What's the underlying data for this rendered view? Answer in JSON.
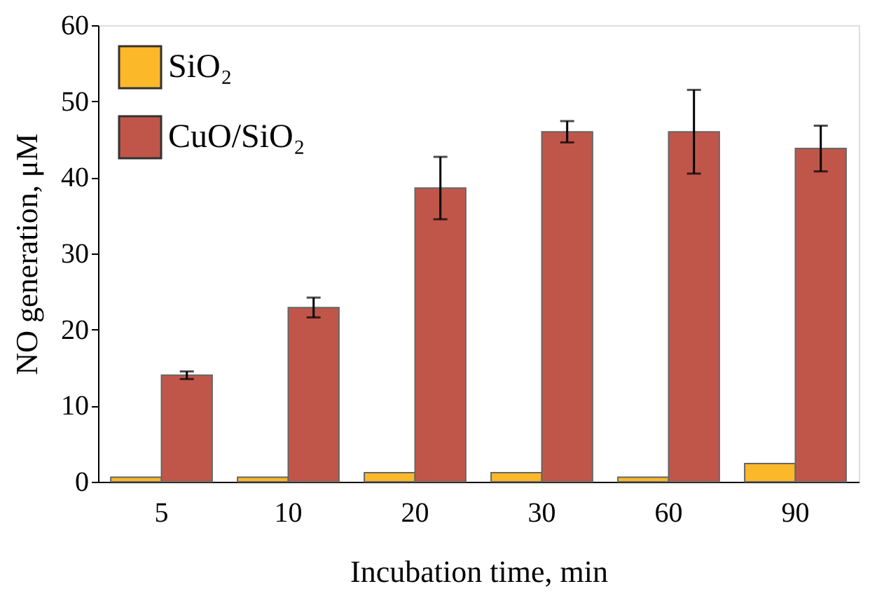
{
  "chart_data": {
    "type": "bar",
    "xlabel": "Incubation time, min",
    "ylabel": "NO generation,  μM",
    "categories": [
      "5",
      "10",
      "20",
      "30",
      "60",
      "90"
    ],
    "series": [
      {
        "name": "SiO₂",
        "color": "#fbb829",
        "values": [
          0.6,
          0.6,
          1.2,
          1.2,
          0.6,
          2.4
        ]
      },
      {
        "name": "CuO/SiO₂",
        "color": "#c0564a",
        "values": [
          14.0,
          22.9,
          38.6,
          46.0,
          46.0,
          43.8
        ],
        "errors": [
          0.5,
          1.3,
          4.1,
          1.4,
          5.5,
          3.0
        ]
      }
    ],
    "ylim": [
      0,
      60
    ],
    "yticks": [
      0,
      10,
      20,
      30,
      40,
      50,
      60
    ],
    "grid": false,
    "legend": "top left"
  }
}
